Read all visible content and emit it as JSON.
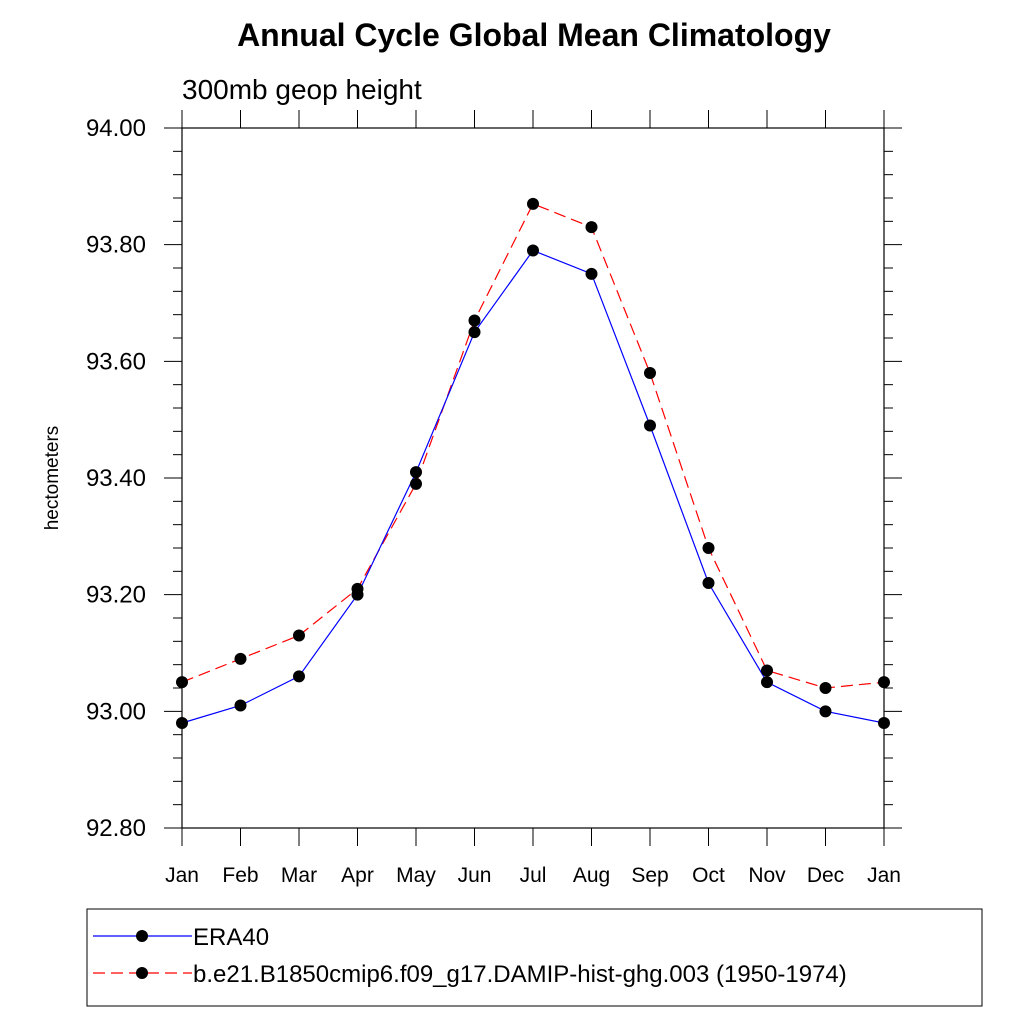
{
  "chart_data": {
    "type": "line",
    "title": "Annual Cycle Global Mean Climatology",
    "subtitle": "300mb geop height",
    "xlabel": "",
    "ylabel": "hectometers",
    "categories": [
      "Jan",
      "Feb",
      "Mar",
      "Apr",
      "May",
      "Jun",
      "Jul",
      "Aug",
      "Sep",
      "Oct",
      "Nov",
      "Dec",
      "Jan"
    ],
    "ylim": [
      92.8,
      94.0
    ],
    "yticks": [
      "92.80",
      "93.00",
      "93.20",
      "93.40",
      "93.60",
      "93.80",
      "94.00"
    ],
    "grid": false,
    "legend_position": "bottom",
    "series": [
      {
        "name": "ERA40",
        "color": "#0000ff",
        "line_style": "solid",
        "marker": "filled-circle",
        "values": [
          92.98,
          93.01,
          93.06,
          93.2,
          93.41,
          93.65,
          93.79,
          93.75,
          93.49,
          93.22,
          93.05,
          93.0,
          92.98
        ]
      },
      {
        "name": "b.e21.B1850cmip6.f09_g17.DAMIP-hist-ghg.003 (1950-1974)",
        "color": "#ff0000",
        "line_style": "dashed",
        "marker": "filled-circle",
        "values": [
          93.05,
          93.09,
          93.13,
          93.21,
          93.39,
          93.67,
          93.87,
          93.83,
          93.58,
          93.28,
          93.07,
          93.04,
          93.05
        ]
      }
    ]
  }
}
